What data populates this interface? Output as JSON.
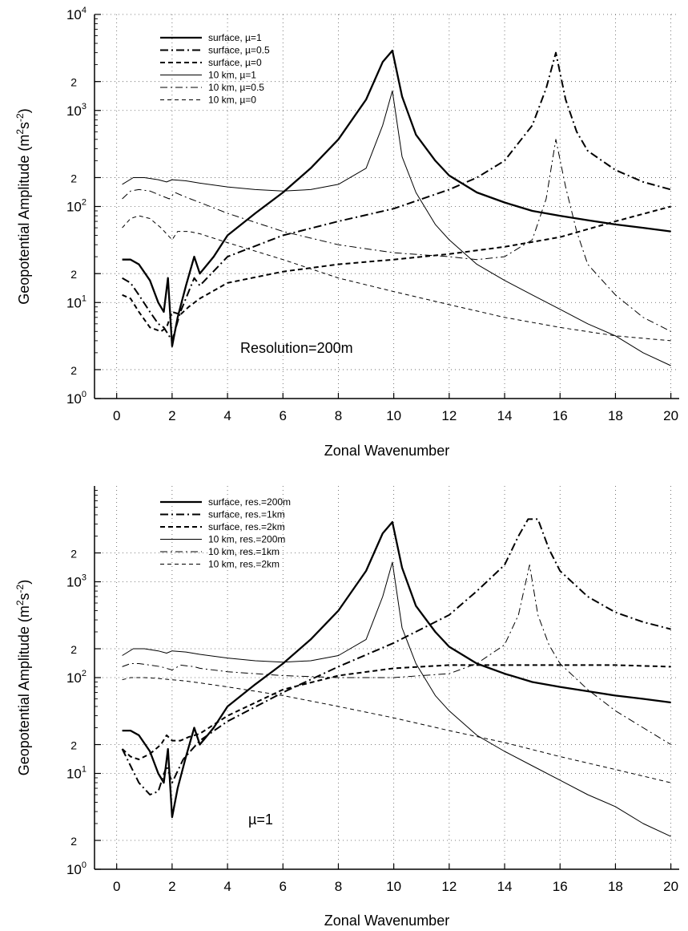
{
  "chart_data": [
    {
      "type": "line",
      "xlabel": "Zonal Wavenumber",
      "ylabel_main": "Geopotential Amplitude (m",
      "ylabel_sup1": "2",
      "ylabel_mid": "s",
      "ylabel_sup2": "-2",
      "ylabel_end": ")",
      "xlim": [
        -0.8,
        20.3
      ],
      "ylim": [
        1,
        10000
      ],
      "y_scale": "log",
      "grid": true,
      "legend_position": "top-left",
      "annotation": "Resolution=200m",
      "x_ticks": [
        "0",
        "2",
        "4",
        "6",
        "8",
        "10",
        "12",
        "14",
        "16",
        "18",
        "20"
      ],
      "y_ticks": [
        {
          "label": "10",
          "exp": "0",
          "value": 1
        },
        {
          "label": "2",
          "exp": "",
          "value": 2
        },
        {
          "label": "10",
          "exp": "1",
          "value": 10
        },
        {
          "label": "2",
          "exp": "",
          "value": 20
        },
        {
          "label": "10",
          "exp": "2",
          "value": 100
        },
        {
          "label": "2",
          "exp": "",
          "value": 200
        },
        {
          "label": "10",
          "exp": "3",
          "value": 1000
        },
        {
          "label": "2",
          "exp": "",
          "value": 2000
        },
        {
          "label": "10",
          "exp": "4",
          "value": 10000
        }
      ],
      "series": [
        {
          "name": "surface, µ=1",
          "style": "solid-thick",
          "x": [
            0.2,
            0.5,
            0.8,
            1.2,
            1.5,
            1.7,
            1.85,
            2.0,
            2.2,
            2.5,
            2.8,
            3.0,
            3.5,
            4,
            5,
            6,
            7,
            8,
            9,
            9.6,
            9.95,
            10.3,
            10.8,
            11.5,
            12,
            13,
            14,
            15,
            16,
            17,
            18,
            19,
            20
          ],
          "y": [
            28,
            28,
            25,
            17,
            10,
            8,
            18,
            3.5,
            7,
            15,
            30,
            20,
            30,
            50,
            85,
            140,
            250,
            500,
            1300,
            3200,
            4200,
            1400,
            560,
            300,
            210,
            140,
            110,
            90,
            80,
            72,
            65,
            60,
            55
          ]
        },
        {
          "name": "surface, µ=0.5",
          "style": "dashdot-thick",
          "x": [
            0.2,
            0.5,
            0.8,
            1.2,
            1.5,
            1.7,
            2.0,
            2.3,
            2.6,
            2.8,
            3,
            4,
            6,
            8,
            10,
            12,
            13,
            14,
            15,
            15.5,
            15.85,
            16.2,
            16.6,
            17,
            18,
            19,
            20
          ],
          "y": [
            18,
            16,
            12,
            8,
            6,
            5.5,
            4,
            8,
            13,
            18,
            15,
            30,
            50,
            70,
            95,
            150,
            200,
            300,
            700,
            1700,
            4000,
            1300,
            600,
            380,
            240,
            180,
            150
          ]
        },
        {
          "name": "surface, µ=0",
          "style": "dashed-thick",
          "x": [
            0.2,
            0.5,
            0.8,
            1.2,
            1.6,
            1.8,
            2.0,
            2.3,
            2.6,
            3,
            4,
            6,
            8,
            10,
            12,
            14,
            16,
            18,
            20
          ],
          "y": [
            12,
            11,
            8,
            5.5,
            5,
            5.5,
            8,
            7.5,
            9,
            11,
            16,
            21,
            25,
            28,
            32,
            38,
            48,
            70,
            100
          ]
        },
        {
          "name": "10 km, µ=1",
          "style": "solid-thin",
          "x": [
            0.2,
            0.6,
            1,
            1.5,
            1.8,
            2,
            2.5,
            3,
            4,
            5,
            6,
            7,
            8,
            9,
            9.6,
            9.95,
            10.3,
            10.8,
            11.5,
            12,
            13,
            14,
            15,
            16,
            17,
            18,
            19,
            20
          ],
          "y": [
            170,
            200,
            200,
            190,
            180,
            190,
            185,
            175,
            160,
            150,
            145,
            150,
            170,
            250,
            700,
            1600,
            330,
            140,
            65,
            45,
            25,
            17,
            12,
            8.5,
            6,
            4.5,
            3,
            2.2
          ]
        },
        {
          "name": "10 km, µ=0.5",
          "style": "dashdot-thin",
          "x": [
            0.2,
            0.5,
            0.8,
            1.2,
            1.6,
            1.9,
            2.1,
            2.5,
            3,
            4,
            6,
            8,
            10,
            12,
            13,
            14,
            15,
            15.5,
            15.85,
            16.2,
            16.6,
            17,
            18,
            19,
            20
          ],
          "y": [
            120,
            145,
            150,
            145,
            130,
            120,
            140,
            125,
            110,
            85,
            55,
            40,
            33,
            30,
            28,
            30,
            45,
            120,
            500,
            160,
            55,
            25,
            12,
            7,
            5
          ]
        },
        {
          "name": "10 km, µ=0",
          "style": "dashed-thin",
          "x": [
            0.2,
            0.5,
            0.8,
            1.2,
            1.6,
            2,
            2.2,
            2.6,
            3,
            4,
            6,
            8,
            10,
            12,
            14,
            16,
            18,
            20
          ],
          "y": [
            60,
            75,
            80,
            75,
            60,
            45,
            55,
            55,
            52,
            42,
            28,
            18,
            13,
            9.5,
            7,
            5.5,
            4.5,
            4
          ]
        }
      ]
    },
    {
      "type": "line",
      "xlabel": "Zonal Wavenumber",
      "ylabel_main": "Geopotential Amplitude (m",
      "ylabel_sup1": "2",
      "ylabel_mid": "s",
      "ylabel_sup2": "-2",
      "ylabel_end": ")",
      "xlim": [
        -0.8,
        20.3
      ],
      "ylim": [
        1,
        10000
      ],
      "y_scale": "log",
      "grid": true,
      "legend_position": "top-left",
      "annotation": "µ=1",
      "x_ticks": [
        "0",
        "2",
        "4",
        "6",
        "8",
        "10",
        "12",
        "14",
        "16",
        "18",
        "20"
      ],
      "y_ticks": [
        {
          "label": "10",
          "exp": "0",
          "value": 1
        },
        {
          "label": "2",
          "exp": "",
          "value": 2
        },
        {
          "label": "10",
          "exp": "1",
          "value": 10
        },
        {
          "label": "2",
          "exp": "",
          "value": 20
        },
        {
          "label": "10",
          "exp": "2",
          "value": 100
        },
        {
          "label": "2",
          "exp": "",
          "value": 200
        },
        {
          "label": "10",
          "exp": "3",
          "value": 1000
        },
        {
          "label": "2",
          "exp": "",
          "value": 2000
        }
      ],
      "series": [
        {
          "name": "surface, res.=200m",
          "style": "solid-thick",
          "x": [
            0.2,
            0.5,
            0.8,
            1.2,
            1.5,
            1.7,
            1.85,
            2.0,
            2.2,
            2.5,
            2.8,
            3.0,
            3.5,
            4,
            5,
            6,
            7,
            8,
            9,
            9.6,
            9.95,
            10.3,
            10.8,
            11.5,
            12,
            13,
            14,
            15,
            16,
            17,
            18,
            19,
            20
          ],
          "y": [
            28,
            28,
            25,
            17,
            10,
            8,
            18,
            3.5,
            7,
            15,
            30,
            20,
            30,
            50,
            85,
            140,
            250,
            500,
            1300,
            3200,
            4200,
            1400,
            560,
            300,
            210,
            140,
            110,
            90,
            80,
            72,
            65,
            60,
            55
          ]
        },
        {
          "name": "surface, res.=1km",
          "style": "dashdot-thick",
          "x": [
            0.2,
            0.5,
            0.8,
            1.2,
            1.5,
            1.8,
            2.0,
            2.4,
            3,
            4,
            6,
            8,
            10,
            12,
            13,
            14,
            14.5,
            14.85,
            15.2,
            15.6,
            16,
            17,
            18,
            19,
            20
          ],
          "y": [
            18,
            12,
            8,
            6,
            6.5,
            12,
            8,
            14,
            22,
            35,
            70,
            130,
            230,
            450,
            800,
            1500,
            3000,
            4500,
            4500,
            2200,
            1300,
            700,
            480,
            380,
            320
          ]
        },
        {
          "name": "surface, res.=2km",
          "style": "dashed-thick",
          "x": [
            0.2,
            0.5,
            0.8,
            1.2,
            1.6,
            1.8,
            2.0,
            2.3,
            2.6,
            3,
            4,
            6,
            8,
            10,
            12,
            14,
            16,
            18,
            20
          ],
          "y": [
            18,
            15,
            14,
            16,
            20,
            25,
            22,
            22,
            24,
            26,
            40,
            75,
            105,
            125,
            135,
            135,
            135,
            135,
            130
          ]
        },
        {
          "name": "10 km, res.=200m",
          "style": "solid-thin",
          "x": [
            0.2,
            0.6,
            1,
            1.5,
            1.8,
            2,
            2.5,
            3,
            4,
            5,
            6,
            7,
            8,
            9,
            9.6,
            9.95,
            10.3,
            10.8,
            11.5,
            12,
            13,
            14,
            15,
            16,
            17,
            18,
            19,
            20
          ],
          "y": [
            170,
            200,
            200,
            190,
            180,
            190,
            185,
            175,
            160,
            150,
            145,
            150,
            170,
            250,
            700,
            1600,
            330,
            140,
            65,
            45,
            25,
            17,
            12,
            8.5,
            6,
            4.5,
            3,
            2.2
          ]
        },
        {
          "name": "10 km, res.=1km",
          "style": "dashdot-thin",
          "x": [
            0.2,
            0.5,
            0.8,
            1.2,
            1.6,
            2,
            2.3,
            2.8,
            3,
            4,
            6,
            8,
            10,
            11,
            12,
            13,
            14,
            14.5,
            14.9,
            15.2,
            15.6,
            16,
            17,
            18,
            19,
            20
          ],
          "y": [
            130,
            140,
            140,
            135,
            130,
            120,
            135,
            130,
            125,
            115,
            105,
            100,
            100,
            105,
            110,
            140,
            220,
            450,
            1500,
            450,
            220,
            140,
            75,
            45,
            30,
            20
          ]
        },
        {
          "name": "10 km, res.=2km",
          "style": "dashed-thin",
          "x": [
            0.2,
            0.5,
            1,
            1.5,
            2,
            2.5,
            3,
            4,
            6,
            8,
            10,
            12,
            14,
            16,
            18,
            20
          ],
          "y": [
            95,
            100,
            100,
            98,
            95,
            92,
            88,
            80,
            65,
            50,
            38,
            28,
            21,
            15,
            11,
            8
          ]
        }
      ]
    }
  ]
}
